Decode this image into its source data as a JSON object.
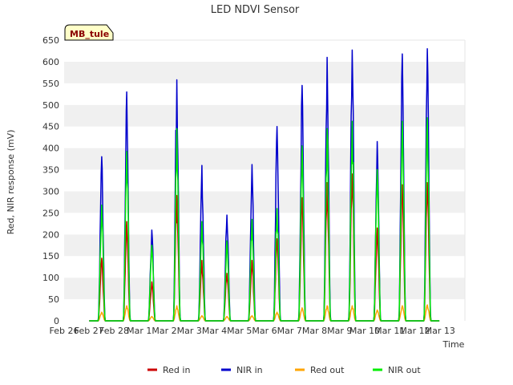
{
  "chart_data": {
    "type": "line",
    "title": "LED NDVI Sensor",
    "xlabel": "Time",
    "ylabel": "Red, NIR response (mV)",
    "site_badge": "MB_tule",
    "ylim": [
      0,
      650
    ],
    "xlim": [
      0,
      16
    ],
    "yticks": [
      0,
      50,
      100,
      150,
      200,
      250,
      300,
      350,
      400,
      450,
      500,
      550,
      600,
      650
    ],
    "x_tick_labels": [
      "Feb 26",
      "Feb 27",
      "Feb 28",
      "Mar 1",
      "Mar 2",
      "Mar 3",
      "Mar 4",
      "Mar 5",
      "Mar 6",
      "Mar 7",
      "Mar 8",
      "Mar 9",
      "Mar 10",
      "Mar 11",
      "Mar 12",
      "Mar 13"
    ],
    "grid": "horizontal bands",
    "legend_position": "bottom",
    "series": [
      {
        "name": "Red in",
        "color": "#cc0000",
        "daily_peaks": [
          145,
          230,
          90,
          290,
          140,
          110,
          140,
          190,
          285,
          320,
          340,
          215,
          315,
          320
        ]
      },
      {
        "name": "NIR in",
        "color": "#0000cc",
        "daily_peaks": [
          380,
          530,
          210,
          558,
          360,
          245,
          362,
          450,
          545,
          610,
          627,
          415,
          618,
          630
        ]
      },
      {
        "name": "Red out",
        "color": "#ffa500",
        "daily_peaks": [
          20,
          35,
          10,
          35,
          12,
          10,
          12,
          20,
          30,
          35,
          35,
          25,
          35,
          37
        ]
      },
      {
        "name": "NIR out",
        "color": "#00ee00",
        "daily_peaks": [
          268,
          392,
          175,
          445,
          230,
          185,
          235,
          260,
          405,
          445,
          462,
          350,
          462,
          470
        ]
      }
    ]
  }
}
